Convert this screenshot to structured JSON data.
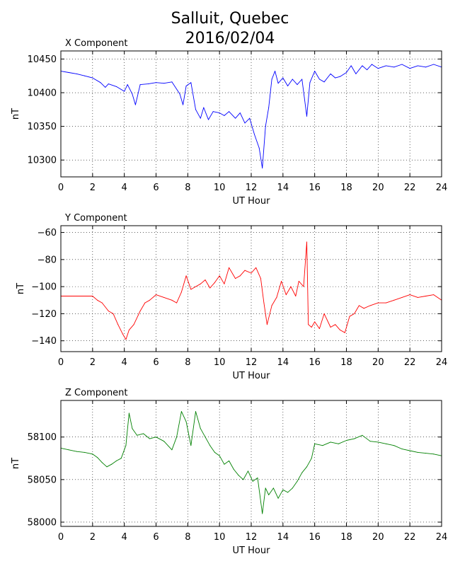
{
  "figure": {
    "title_line1": "Salluit, Quebec",
    "title_line2": "2016/02/04"
  },
  "chart_data": [
    {
      "type": "line",
      "title": "X Component",
      "xlabel": "UT Hour",
      "ylabel": "nT",
      "xlim": [
        0,
        24
      ],
      "ylim": [
        10275,
        10462
      ],
      "xticks": [
        0,
        2,
        4,
        6,
        8,
        10,
        12,
        14,
        16,
        18,
        20,
        22,
        24
      ],
      "yticks": [
        10300,
        10350,
        10400,
        10450
      ],
      "grid": true,
      "color": "#0000ff",
      "series": [
        {
          "x": [
            0,
            0.5,
            1,
            1.5,
            2,
            2.5,
            2.8,
            3,
            3.5,
            4,
            4.2,
            4.5,
            4.7,
            5,
            5.5,
            6,
            6.5,
            7,
            7.5,
            7.7,
            7.9,
            8.2,
            8.5,
            8.8,
            9,
            9.3,
            9.6,
            10,
            10.3,
            10.6,
            11,
            11.3,
            11.6,
            11.9,
            12.2,
            12.5,
            12.7,
            12.9,
            13.1,
            13.3,
            13.5,
            13.7,
            14,
            14.3,
            14.6,
            14.9,
            15.2,
            15.5,
            15.7,
            16,
            16.3,
            16.6,
            17,
            17.3,
            17.6,
            18,
            18.3,
            18.6,
            19,
            19.3,
            19.6,
            20,
            20.5,
            21,
            21.5,
            22,
            22.5,
            23,
            23.5,
            24
          ],
          "values": [
            10432,
            10430,
            10428,
            10425,
            10422,
            10415,
            10408,
            10413,
            10409,
            10402,
            10412,
            10398,
            10382,
            10412,
            10413,
            10415,
            10414,
            10416,
            10398,
            10382,
            10410,
            10415,
            10375,
            10362,
            10378,
            10360,
            10372,
            10370,
            10366,
            10372,
            10362,
            10370,
            10355,
            10362,
            10338,
            10318,
            10288,
            10350,
            10378,
            10420,
            10432,
            10414,
            10422,
            10410,
            10420,
            10412,
            10420,
            10365,
            10415,
            10432,
            10420,
            10416,
            10428,
            10422,
            10424,
            10430,
            10440,
            10428,
            10440,
            10434,
            10442,
            10436,
            10440,
            10438,
            10442,
            10436,
            10440,
            10438,
            10442,
            10438
          ]
        }
      ]
    },
    {
      "type": "line",
      "title": "Y Component",
      "xlabel": "UT Hour",
      "ylabel": "nT",
      "xlim": [
        0,
        24
      ],
      "ylim": [
        -148,
        -55
      ],
      "xticks": [
        0,
        2,
        4,
        6,
        8,
        10,
        12,
        14,
        16,
        18,
        20,
        22,
        24
      ],
      "yticks": [
        -140,
        -120,
        -100,
        -80,
        -60
      ],
      "grid": true,
      "color": "#ff0000",
      "series": [
        {
          "x": [
            0,
            0.5,
            1,
            1.5,
            2,
            2.3,
            2.6,
            3,
            3.3,
            3.6,
            3.9,
            4.1,
            4.3,
            4.6,
            5,
            5.3,
            5.6,
            6,
            6.5,
            7,
            7.3,
            7.6,
            7.9,
            8.2,
            8.5,
            8.8,
            9.1,
            9.4,
            9.7,
            10,
            10.3,
            10.6,
            11,
            11.3,
            11.6,
            12,
            12.3,
            12.6,
            12.8,
            13,
            13.3,
            13.6,
            13.9,
            14.2,
            14.5,
            14.8,
            15,
            15.3,
            15.5,
            15.6,
            15.8,
            16,
            16.3,
            16.6,
            17,
            17.3,
            17.6,
            17.9,
            18.2,
            18.5,
            18.8,
            19.1,
            19.5,
            20,
            20.5,
            21,
            21.5,
            22,
            22.5,
            23,
            23.5,
            24
          ],
          "values": [
            -107,
            -107,
            -107,
            -107,
            -107,
            -110,
            -112,
            -118,
            -120,
            -128,
            -135,
            -139,
            -132,
            -128,
            -118,
            -112,
            -110,
            -106,
            -108,
            -110,
            -112,
            -104,
            -92,
            -102,
            -100,
            -98,
            -95,
            -101,
            -97,
            -92,
            -98,
            -86,
            -94,
            -92,
            -88,
            -90,
            -86,
            -94,
            -112,
            -128,
            -114,
            -108,
            -96,
            -106,
            -100,
            -107,
            -96,
            -100,
            -67,
            -128,
            -130,
            -126,
            -131,
            -120,
            -130,
            -128,
            -132,
            -134,
            -122,
            -120,
            -114,
            -116,
            -114,
            -112,
            -112,
            -110,
            -108,
            -106,
            -108,
            -107,
            -106,
            -110
          ]
        }
      ]
    },
    {
      "type": "line",
      "title": "Z Component",
      "xlabel": "UT Hour",
      "ylabel": "nT",
      "xlim": [
        0,
        24
      ],
      "ylim": [
        57995,
        58143
      ],
      "xticks": [
        0,
        2,
        4,
        6,
        8,
        10,
        12,
        14,
        16,
        18,
        20,
        22,
        24
      ],
      "yticks": [
        58000,
        58050,
        58100
      ],
      "grid": true,
      "color": "#008000",
      "series": [
        {
          "x": [
            0,
            0.5,
            1,
            1.5,
            2,
            2.3,
            2.6,
            2.9,
            3.2,
            3.5,
            3.8,
            4.1,
            4.3,
            4.5,
            4.8,
            5.2,
            5.6,
            6,
            6.5,
            7,
            7.3,
            7.6,
            7.9,
            8.2,
            8.5,
            8.8,
            9.1,
            9.4,
            9.7,
            10,
            10.3,
            10.6,
            10.9,
            11.2,
            11.5,
            11.8,
            12.1,
            12.4,
            12.7,
            12.9,
            13.1,
            13.4,
            13.7,
            14,
            14.3,
            14.6,
            14.9,
            15.2,
            15.5,
            15.8,
            16,
            16.5,
            17,
            17.5,
            18,
            18.5,
            19,
            19.5,
            20,
            20.5,
            21,
            21.5,
            22,
            22.5,
            23,
            23.5,
            24
          ],
          "values": [
            58087,
            58085,
            58083,
            58082,
            58080,
            58076,
            58070,
            58065,
            58068,
            58072,
            58075,
            58090,
            58128,
            58110,
            58102,
            58104,
            58098,
            58100,
            58095,
            58085,
            58100,
            58130,
            58118,
            58090,
            58130,
            58110,
            58100,
            58090,
            58082,
            58078,
            58068,
            58072,
            58062,
            58055,
            58050,
            58060,
            58048,
            58052,
            58010,
            58040,
            58032,
            58040,
            58028,
            58038,
            58035,
            58040,
            58048,
            58058,
            58065,
            58075,
            58092,
            58090,
            58094,
            58092,
            58096,
            58098,
            58102,
            58095,
            58094,
            58092,
            58090,
            58086,
            58084,
            58082,
            58081,
            58080,
            58078
          ]
        }
      ]
    }
  ]
}
